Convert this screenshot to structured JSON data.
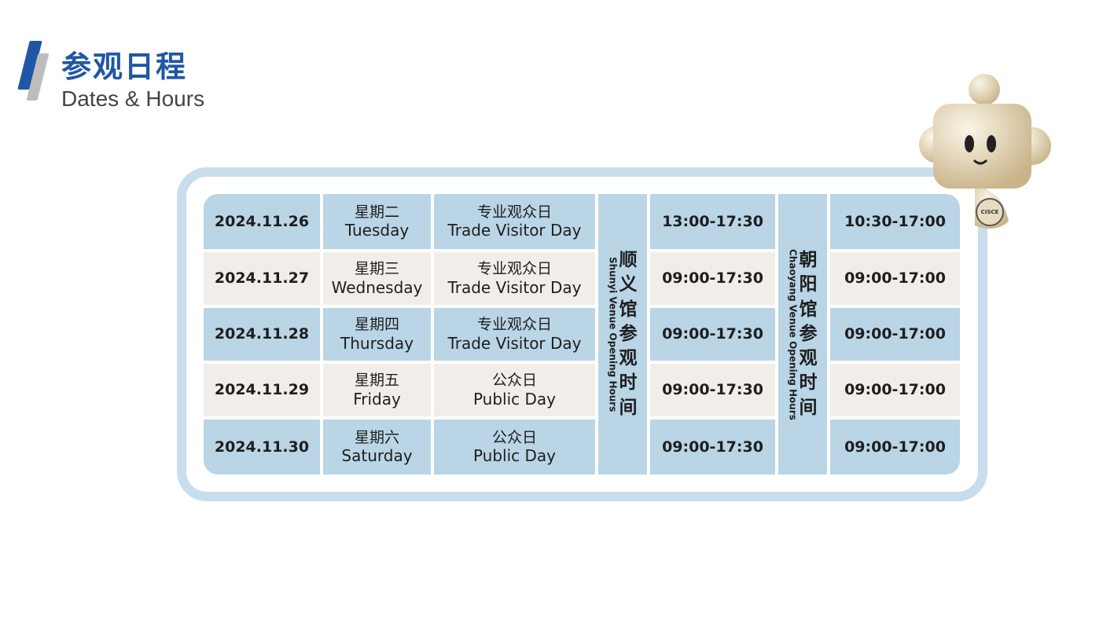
{
  "header": {
    "title_zh": "参观日程",
    "title_en": "Dates & Hours"
  },
  "venues": {
    "shunyi": {
      "label_zh": "顺义馆参观时间",
      "label_en": "Shunyi Venue Opening Hours"
    },
    "chaoyang": {
      "label_zh": "朝阳馆参观时间",
      "label_en": "Chaoyang Venue Opening Hours"
    }
  },
  "rows": [
    {
      "date": "2024.11.26",
      "day_zh": "星期二",
      "day_en": "Tuesday",
      "type_zh": "专业观众日",
      "type_en": "Trade Visitor Day",
      "shunyi": "13:00-17:30",
      "chaoyang": "10:30-17:00"
    },
    {
      "date": "2024.11.27",
      "day_zh": "星期三",
      "day_en": "Wednesday",
      "type_zh": "专业观众日",
      "type_en": "Trade Visitor Day",
      "shunyi": "09:00-17:30",
      "chaoyang": "09:00-17:00"
    },
    {
      "date": "2024.11.28",
      "day_zh": "星期四",
      "day_en": "Thursday",
      "type_zh": "专业观众日",
      "type_en": "Trade Visitor Day",
      "shunyi": "09:00-17:30",
      "chaoyang": "09:00-17:00"
    },
    {
      "date": "2024.11.29",
      "day_zh": "星期五",
      "day_en": "Friday",
      "type_zh": "公众日",
      "type_en": "Public Day",
      "shunyi": "09:00-17:30",
      "chaoyang": "09:00-17:00"
    },
    {
      "date": "2024.11.30",
      "day_zh": "星期六",
      "day_en": "Saturday",
      "type_zh": "公众日",
      "type_en": "Public Day",
      "shunyi": "09:00-17:30",
      "chaoyang": "09:00-17:00"
    }
  ],
  "colors": {
    "brand": "#1f57a6",
    "cell_blue": "#b9d5e6",
    "cell_beige": "#f1eeea",
    "frame": "#c9deec"
  },
  "mascot": {
    "badge_text": "CISCE"
  }
}
